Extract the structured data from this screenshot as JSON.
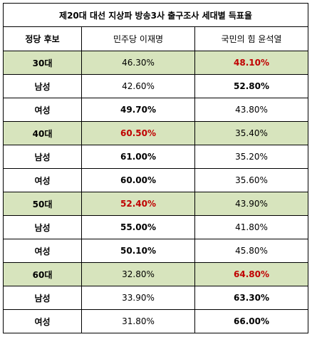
{
  "title": "제20대 대선 지상파 방송3사 출구조사 세대별 득표율",
  "header": {
    "col0": "정당 후보",
    "col1": "민주당 이재명",
    "col2": "국민의 힘 윤석열"
  },
  "colors": {
    "age_row_fill": "#d7e4bd",
    "highlight_red": "#c00000",
    "border": "#000000"
  },
  "rows": [
    {
      "label": "30대",
      "group": true,
      "lee": "46.30%",
      "yoon": "48.10%",
      "lee_style": "plain",
      "yoon_style": "red"
    },
    {
      "label": "남성",
      "group": false,
      "lee": "42.60%",
      "yoon": "52.80%",
      "lee_style": "plain",
      "yoon_style": "bold"
    },
    {
      "label": "여성",
      "group": false,
      "lee": "49.70%",
      "yoon": "43.80%",
      "lee_style": "bold",
      "yoon_style": "plain"
    },
    {
      "label": "40대",
      "group": true,
      "lee": "60.50%",
      "yoon": "35.40%",
      "lee_style": "red",
      "yoon_style": "plain"
    },
    {
      "label": "남성",
      "group": false,
      "lee": "61.00%",
      "yoon": "35.20%",
      "lee_style": "bold",
      "yoon_style": "plain"
    },
    {
      "label": "여성",
      "group": false,
      "lee": "60.00%",
      "yoon": "35.60%",
      "lee_style": "bold",
      "yoon_style": "plain"
    },
    {
      "label": "50대",
      "group": true,
      "lee": "52.40%",
      "yoon": "43.90%",
      "lee_style": "red",
      "yoon_style": "plain"
    },
    {
      "label": "남성",
      "group": false,
      "lee": "55.00%",
      "yoon": "41.80%",
      "lee_style": "bold",
      "yoon_style": "plain"
    },
    {
      "label": "여성",
      "group": false,
      "lee": "50.10%",
      "yoon": "45.80%",
      "lee_style": "bold",
      "yoon_style": "plain"
    },
    {
      "label": "60대",
      "group": true,
      "lee": "32.80%",
      "yoon": "64.80%",
      "lee_style": "plain",
      "yoon_style": "red"
    },
    {
      "label": "남성",
      "group": false,
      "lee": "33.90%",
      "yoon": "63.30%",
      "lee_style": "plain",
      "yoon_style": "bold"
    },
    {
      "label": "여성",
      "group": false,
      "lee": "31.80%",
      "yoon": "66.00%",
      "lee_style": "plain",
      "yoon_style": "bold"
    }
  ]
}
